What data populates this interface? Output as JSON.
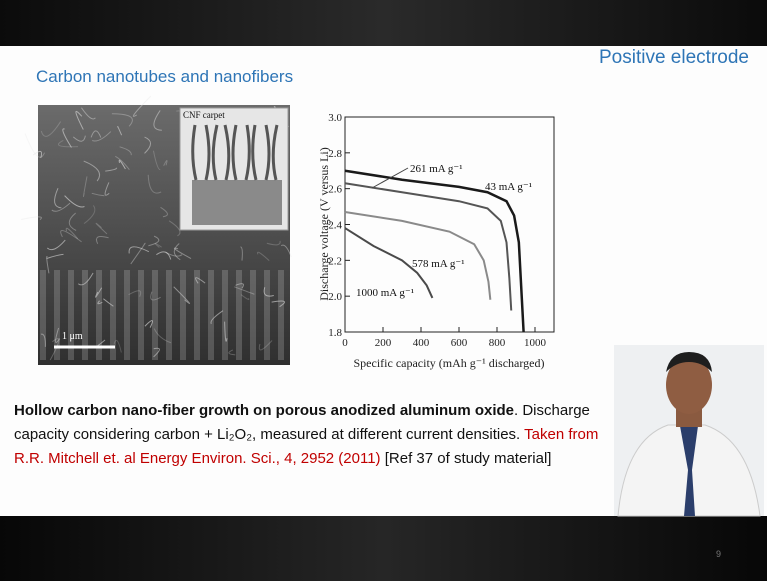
{
  "header": {
    "title": "Positive electrode",
    "subtitle": "Carbon nanotubes and nanofibers"
  },
  "figure": {
    "inset_label": "CNF carpet",
    "scale_bar": "1 μm",
    "chart": {
      "type": "line",
      "y_label": "Discharge voltage (V versus Li)",
      "x_label": "Specific capacity (mAh g⁻¹ discharged)",
      "xlim": [
        0,
        1100
      ],
      "xticks": [
        0,
        200,
        400,
        600,
        800,
        1000
      ],
      "ylim": [
        1.8,
        3.0
      ],
      "yticks": [
        {
          "value": 1.8,
          "label": "1.8"
        },
        {
          "value": 2,
          "label": "2.0"
        },
        2.2,
        2.4,
        2.6,
        2.8,
        {
          "value": 3,
          "label": "3.0"
        }
      ],
      "series": [
        {
          "name": "43 mA g⁻¹",
          "color": "#1a1a1a",
          "x": [
            0,
            300,
            600,
            750,
            850,
            890,
            915,
            930,
            940
          ],
          "values": [
            2.7,
            2.65,
            2.61,
            2.58,
            2.53,
            2.45,
            2.3,
            2.0,
            1.8
          ]
        },
        {
          "name": "261 mA g⁻¹",
          "color": "#555555",
          "x": [
            0,
            300,
            600,
            750,
            820,
            850,
            865,
            875
          ],
          "values": [
            2.63,
            2.58,
            2.53,
            2.49,
            2.42,
            2.3,
            2.1,
            1.92
          ]
        },
        {
          "name": "578 mA g⁻¹",
          "color": "#8a8a8a",
          "x": [
            0,
            300,
            550,
            680,
            730,
            755,
            765
          ],
          "values": [
            2.47,
            2.42,
            2.36,
            2.29,
            2.2,
            2.08,
            1.98
          ]
        },
        {
          "name": "1000 mA g⁻¹",
          "color": "#4a4a4a",
          "x": [
            0,
            150,
            300,
            380,
            430,
            460
          ],
          "values": [
            2.38,
            2.28,
            2.2,
            2.13,
            2.06,
            1.99
          ]
        }
      ]
    }
  },
  "caption": {
    "bold": "Hollow carbon nano-fiber growth on porous anodized aluminum oxide",
    "text": ". Discharge capacity considering carbon + Li₂O₂, measured at different current densities.",
    "source": "Taken from R.R. Mitchell et. al Energy Environ. Sci., 4, 2952 (2011)",
    "reference": "[Ref 37 of study material]"
  },
  "footer": {
    "slide_number": "9"
  }
}
